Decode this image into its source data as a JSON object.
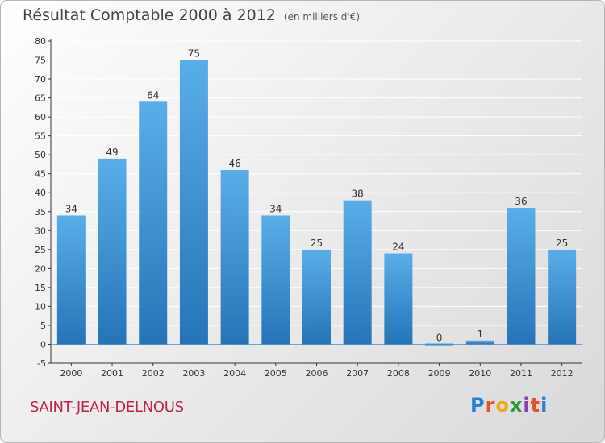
{
  "header": {
    "title": "Résultat Comptable 2000 à 2012",
    "unit": "(en milliers d'€)"
  },
  "footer": {
    "town": "SAINT-JEAN-DELNOUS",
    "logo_letters": [
      "P",
      "r",
      "o",
      "x",
      "i",
      "t",
      "i"
    ]
  },
  "colors": {
    "bar_top": "#5aaee8",
    "bar_bottom": "#2574b8",
    "axis": "#333333",
    "grid": "#ffffff"
  },
  "chart_data": {
    "type": "bar",
    "title": "Résultat Comptable 2000 à 2012",
    "subtitle": "(en milliers d'€)",
    "categories": [
      "2000",
      "2001",
      "2002",
      "2003",
      "2004",
      "2005",
      "2006",
      "2007",
      "2008",
      "2009",
      "2010",
      "2011",
      "2012"
    ],
    "values": [
      34,
      49,
      64,
      75,
      46,
      34,
      25,
      38,
      24,
      0,
      1,
      36,
      25
    ],
    "ylim": [
      -5,
      80
    ],
    "yticks": [
      -5,
      0,
      5,
      10,
      15,
      20,
      25,
      30,
      35,
      40,
      45,
      50,
      55,
      60,
      65,
      70,
      75,
      80
    ],
    "grid": true,
    "data_labels": true
  }
}
